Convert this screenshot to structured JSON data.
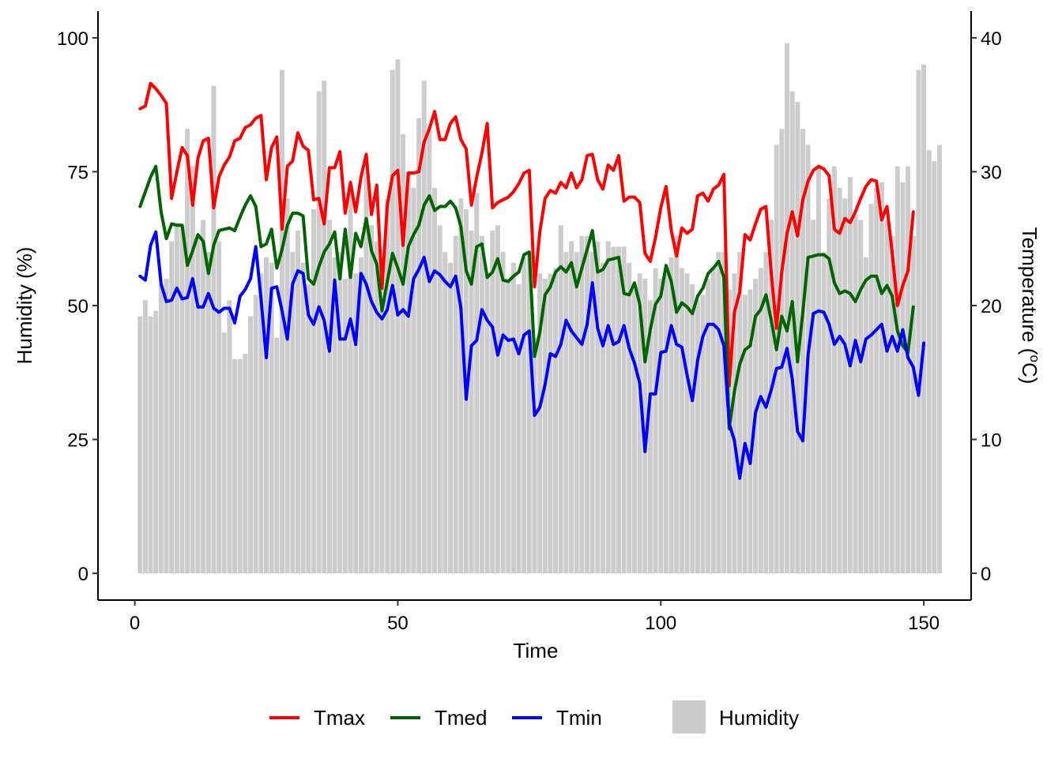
{
  "chart_data": {
    "type": "bar+line",
    "x_label": "Time",
    "y_left_label": "Humidity (%)",
    "y_right_label": "Temperature (",
    "y_right_label_sup": "o",
    "y_right_label_end": "C)",
    "x_ticks": [
      0,
      50,
      100,
      150
    ],
    "y_left_ticks": [
      0,
      25,
      50,
      75,
      100
    ],
    "y_right_ticks": [
      0,
      10,
      20,
      30,
      40
    ],
    "xlim": [
      -7,
      159
    ],
    "ylim_left": [
      -5,
      105
    ],
    "ylim_right": [
      -2,
      42
    ],
    "grid": false,
    "legend_position": "bottom",
    "colors": {
      "Tmax": "#ff0000",
      "Tmed": "#006400",
      "Tmin": "#0000ff",
      "Humidity": "#cccccc"
    },
    "humidity": {
      "name": "Humidity",
      "x_start": 1,
      "values": [
        48,
        51,
        48,
        49,
        54,
        55,
        62,
        65,
        65,
        83,
        76,
        63,
        66,
        60,
        91,
        62,
        45,
        51,
        40,
        40,
        41,
        48,
        52,
        56,
        59,
        58,
        44,
        94,
        70,
        60,
        64,
        58,
        54,
        68,
        90,
        92,
        66,
        59,
        60,
        55,
        71,
        56,
        59,
        75,
        65,
        62,
        59,
        70,
        94,
        96,
        82,
        75,
        72,
        85,
        92,
        83,
        72,
        65,
        60,
        58,
        63,
        70,
        68,
        64,
        71,
        63,
        56,
        64,
        65,
        60,
        55,
        58,
        54,
        59,
        60,
        44,
        56,
        55,
        56,
        57,
        65,
        60,
        62,
        60,
        63,
        63,
        60,
        62,
        58,
        62,
        61,
        61,
        61,
        58,
        53,
        56,
        55,
        51,
        57,
        55,
        56,
        59,
        63,
        57,
        56,
        54,
        51,
        52,
        55,
        57,
        60,
        60,
        53,
        56,
        60,
        52,
        53,
        55,
        57,
        60,
        66,
        80,
        83,
        99,
        90,
        88,
        83,
        80,
        66,
        76,
        60,
        70,
        76,
        72,
        70,
        74,
        67,
        66,
        59,
        69,
        72,
        73,
        66,
        63,
        76,
        73,
        76,
        63,
        94,
        95,
        79,
        77,
        80
      ]
    },
    "series": [
      {
        "name": "Tmax",
        "x_start": 1,
        "values": [
          34.7,
          34.9,
          36.6,
          36.2,
          35.7,
          35.1,
          28.0,
          30.0,
          31.8,
          31.2,
          27.5,
          31.0,
          32.3,
          32.5,
          27.3,
          29.6,
          30.5,
          31.1,
          32.3,
          32.5,
          33.3,
          33.5,
          34.0,
          34.2,
          29.4,
          31.8,
          32.6,
          25.7,
          30.4,
          30.8,
          32.9,
          31.9,
          31.6,
          27.9,
          28.0,
          26.1,
          30.3,
          30.3,
          31.5,
          26.9,
          29.2,
          27.0,
          29.6,
          31.3,
          26.8,
          29.0,
          21.3,
          27.5,
          29.7,
          30.1,
          24.5,
          29.9,
          29.9,
          30.0,
          32.2,
          33.2,
          34.5,
          32.4,
          32.4,
          33.6,
          34.1,
          32.4,
          31.7,
          27.5,
          29.6,
          31.4,
          33.6,
          27.3,
          27.7,
          27.9,
          28.1,
          28.5,
          29.1,
          29.9,
          30.1,
          21.4,
          25.5,
          28.0,
          28.6,
          28.4,
          29.2,
          28.8,
          29.9,
          28.8,
          29.4,
          31.2,
          31.3,
          29.4,
          28.7,
          30.5,
          30.1,
          31.2,
          27.8,
          28.1,
          28.1,
          27.7,
          23.9,
          23.3,
          25.1,
          27.3,
          28.9,
          25.6,
          23.7,
          25.8,
          25.4,
          25.7,
          28.2,
          28.4,
          27.8,
          28.7,
          29.0,
          29.8,
          14.0,
          19.5,
          21.0,
          25.3,
          24.9,
          26.1,
          27.2,
          27.4,
          22.4,
          18.3,
          22.5,
          25.4,
          27.0,
          25.2,
          27.9,
          29.3,
          30.1,
          30.4,
          30.2,
          29.7,
          25.7,
          25.4,
          26.5,
          26.2,
          27.0,
          28.0,
          28.9,
          29.4,
          29.3,
          26.4,
          27.4,
          23.9,
          20.0,
          21.5,
          22.6,
          27.0
        ]
      },
      {
        "name": "Tmed",
        "x_start": 1,
        "values": [
          27.4,
          28.5,
          29.6,
          30.4,
          27.0,
          25.0,
          26.1,
          26.0,
          26.0,
          23.0,
          24.1,
          25.3,
          24.8,
          22.4,
          24.5,
          25.6,
          25.7,
          25.8,
          25.6,
          26.6,
          27.5,
          28.2,
          27.4,
          24.4,
          24.6,
          25.7,
          22.8,
          24.2,
          26.0,
          26.9,
          26.9,
          26.7,
          22.0,
          21.6,
          22.9,
          24.0,
          24.6,
          25.5,
          22.0,
          25.7,
          22.1,
          25.4,
          24.4,
          26.5,
          24.1,
          23.1,
          19.6,
          21.8,
          23.9,
          22.8,
          21.6,
          24.4,
          25.3,
          26.0,
          27.5,
          28.2,
          27.1,
          27.4,
          27.4,
          27.8,
          27.3,
          25.9,
          22.6,
          21.6,
          24.4,
          24.6,
          22.1,
          22.5,
          23.5,
          21.9,
          21.8,
          22.2,
          22.5,
          23.8,
          24.0,
          16.2,
          18.0,
          20.8,
          21.4,
          22.5,
          22.9,
          22.5,
          23.2,
          21.4,
          22.8,
          24.2,
          25.6,
          22.5,
          22.7,
          23.4,
          23.5,
          23.6,
          20.9,
          20.8,
          21.7,
          20.1,
          15.8,
          18.2,
          20.1,
          20.7,
          23.0,
          21.8,
          19.5,
          20.2,
          19.9,
          19.4,
          20.7,
          21.3,
          22.4,
          22.8,
          23.3,
          22.1,
          10.8,
          13.6,
          15.6,
          16.7,
          17.0,
          19.2,
          19.7,
          20.8,
          18.9,
          16.7,
          19.2,
          18.1,
          20.3,
          15.8,
          19.5,
          23.6,
          23.7,
          23.8,
          23.8,
          23.5,
          21.7,
          20.9,
          21.1,
          20.9,
          20.3,
          21.2,
          21.9,
          22.2,
          22.2,
          20.9,
          21.5,
          20.7,
          18.1,
          17.0,
          16.5,
          19.9
        ]
      },
      {
        "name": "Tmin",
        "x_start": 1,
        "values": [
          22.2,
          21.9,
          24.5,
          25.5,
          21.6,
          20.3,
          20.4,
          21.3,
          20.5,
          20.6,
          22.0,
          19.9,
          19.9,
          20.9,
          19.8,
          19.5,
          19.8,
          19.8,
          18.7,
          20.7,
          21.2,
          22.0,
          24.4,
          20.5,
          16.1,
          21.3,
          21.4,
          19.6,
          17.5,
          21.6,
          22.6,
          22.4,
          19.3,
          18.6,
          19.9,
          18.9,
          16.6,
          21.9,
          17.5,
          17.5,
          19.0,
          17.1,
          22.4,
          21.6,
          20.3,
          19.5,
          19.0,
          19.7,
          21.5,
          19.3,
          19.7,
          19.2,
          22.0,
          22.7,
          23.6,
          21.8,
          22.6,
          22.3,
          21.8,
          21.4,
          22.2,
          19.8,
          13.0,
          17.0,
          17.4,
          19.7,
          18.9,
          18.4,
          16.3,
          17.8,
          17.4,
          17.5,
          16.4,
          17.8,
          18.1,
          11.8,
          12.4,
          14.1,
          16.4,
          16.2,
          17.1,
          18.9,
          18.1,
          17.6,
          17.1,
          18.6,
          21.7,
          18.3,
          17.0,
          18.5,
          17.1,
          17.3,
          18.5,
          16.8,
          15.7,
          14.2,
          9.1,
          13.4,
          13.4,
          16.5,
          16.6,
          18.5,
          17.1,
          16.9,
          14.8,
          12.9,
          15.9,
          17.7,
          18.6,
          18.6,
          18.2,
          17.0,
          11.2,
          9.9,
          7.1,
          9.7,
          8.2,
          12.0,
          13.2,
          12.4,
          13.7,
          15.3,
          15.4,
          16.8,
          14.5,
          10.6,
          9.9,
          16.3,
          19.4,
          19.6,
          19.5,
          18.6,
          17.1,
          17.7,
          17.1,
          15.5,
          17.4,
          15.8,
          17.5,
          17.8,
          18.2,
          18.6,
          16.6,
          17.7,
          16.6,
          18.2,
          16.1,
          15.4,
          13.3,
          17.2
        ]
      }
    ],
    "legend": [
      {
        "name": "Tmax",
        "kind": "line"
      },
      {
        "name": "Tmed",
        "kind": "line"
      },
      {
        "name": "Tmin",
        "kind": "line"
      },
      {
        "name": "Humidity",
        "kind": "bar"
      }
    ]
  }
}
